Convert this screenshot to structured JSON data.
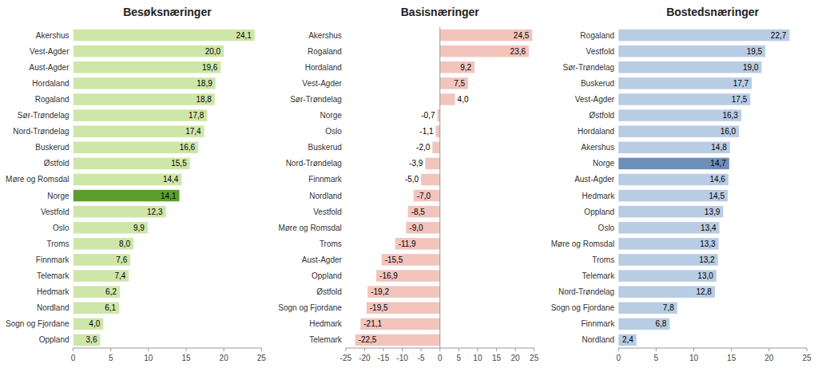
{
  "chart_data": [
    {
      "type": "bar",
      "orientation": "horizontal",
      "title": "Besøksnæringer",
      "categories": [
        "Akershus",
        "Vest-Agder",
        "Aust-Agder",
        "Hordaland",
        "Rogaland",
        "Sør-Trøndelag",
        "Nord-Trøndelag",
        "Buskerud",
        "Østfold",
        "Møre og Romsdal",
        "Norge",
        "Vestfold",
        "Oslo",
        "Troms",
        "Finnmark",
        "Telemark",
        "Hedmark",
        "Nordland",
        "Sogn og Fjordane",
        "Oppland"
      ],
      "values": [
        24.1,
        20.0,
        19.6,
        18.9,
        18.8,
        17.8,
        17.4,
        16.6,
        15.5,
        14.4,
        14.1,
        12.3,
        9.9,
        8.0,
        7.6,
        7.4,
        6.2,
        6.1,
        4.0,
        3.6
      ],
      "value_labels": [
        "24,1",
        "20,0",
        "19,6",
        "18,9",
        "18,8",
        "17,8",
        "17,4",
        "16,6",
        "15,5",
        "14,4",
        "14,1",
        "12,3",
        "9,9",
        "8,0",
        "7,6",
        "7,4",
        "6,2",
        "6,1",
        "4,0",
        "3,6"
      ],
      "colors": [
        "#cee6a8",
        "#cee6a8",
        "#cee6a8",
        "#cee6a8",
        "#cee6a8",
        "#cee6a8",
        "#cee6a8",
        "#cee6a8",
        "#cee6a8",
        "#cee6a8",
        "#5a9e2f",
        "#cee6a8",
        "#cee6a8",
        "#cee6a8",
        "#cee6a8",
        "#cee6a8",
        "#cee6a8",
        "#cee6a8",
        "#cee6a8",
        "#cee6a8"
      ],
      "xlim": [
        0,
        25
      ],
      "xticks": [
        0,
        5,
        10,
        15,
        20,
        25
      ],
      "data_labels": true,
      "grid": false
    },
    {
      "type": "bar",
      "orientation": "horizontal",
      "title": "Basisnæringer",
      "categories": [
        "Akershus",
        "Rogaland",
        "Hordaland",
        "Vest-Agder",
        "Sør-Trøndelag",
        "Norge",
        "Oslo",
        "Buskerud",
        "Nord-Trøndelag",
        "Finnmark",
        "Nordland",
        "Vestfold",
        "Møre og Romsdal",
        "Troms",
        "Aust-Agder",
        "Oppland",
        "Østfold",
        "Sogn og Fjordane",
        "Hedmark",
        "Telemark"
      ],
      "values": [
        24.5,
        23.6,
        9.2,
        7.5,
        4.0,
        -0.7,
        -1.1,
        -2.0,
        -3.9,
        -5.0,
        -7.0,
        -8.5,
        -9.0,
        -11.9,
        -15.5,
        -16.9,
        -19.2,
        -19.5,
        -21.1,
        -22.5
      ],
      "value_labels": [
        "24,5",
        "23,6",
        "9,2",
        "7,5",
        "4,0",
        "-0,7",
        "-1,1",
        "-2,0",
        "-3,9",
        "-5,0",
        "-7,0",
        "-8,5",
        "-9,0",
        "-11,9",
        "-15,5",
        "-16,9",
        "-19,2",
        "-19,5",
        "-21,1",
        "-22,5"
      ],
      "color": "#f2c4bc",
      "xlim": [
        -25,
        25
      ],
      "xticks": [
        -25,
        -20,
        -15,
        -10,
        -5,
        0,
        5,
        10,
        15,
        20,
        25
      ],
      "data_labels": true,
      "grid": false
    },
    {
      "type": "bar",
      "orientation": "horizontal",
      "title": "Bostedsnæringer",
      "categories": [
        "Rogaland",
        "Vestfold",
        "Sør-Trøndelag",
        "Buskerud",
        "Vest-Agder",
        "Østfold",
        "Hordaland",
        "Akershus",
        "Norge",
        "Aust-Agder",
        "Hedmark",
        "Oppland",
        "Oslo",
        "Møre og Romsdal",
        "Troms",
        "Telemark",
        "Nord-Trøndelag",
        "Sogn og Fjordane",
        "Finnmark",
        "Nordland"
      ],
      "values": [
        22.7,
        19.5,
        19.0,
        17.7,
        17.5,
        16.3,
        16.0,
        14.8,
        14.7,
        14.6,
        14.5,
        13.9,
        13.4,
        13.3,
        13.2,
        13.0,
        12.8,
        7.8,
        6.8,
        2.4
      ],
      "value_labels": [
        "22,7",
        "19,5",
        "19,0",
        "17,7",
        "17,5",
        "16,3",
        "16,0",
        "14,8",
        "14,7",
        "14,6",
        "14,5",
        "13,9",
        "13,4",
        "13,3",
        "13,2",
        "13,0",
        "12,8",
        "7,8",
        "6,8",
        "2,4"
      ],
      "colors": [
        "#b8cce4",
        "#b8cce4",
        "#b8cce4",
        "#b8cce4",
        "#b8cce4",
        "#b8cce4",
        "#b8cce4",
        "#b8cce4",
        "#6d8eb8",
        "#b8cce4",
        "#b8cce4",
        "#b8cce4",
        "#b8cce4",
        "#b8cce4",
        "#b8cce4",
        "#b8cce4",
        "#b8cce4",
        "#b8cce4",
        "#b8cce4",
        "#b8cce4"
      ],
      "xlim": [
        0,
        25
      ],
      "xticks": [
        0,
        5,
        10,
        15,
        20,
        25
      ],
      "data_labels": true,
      "grid": false
    }
  ]
}
